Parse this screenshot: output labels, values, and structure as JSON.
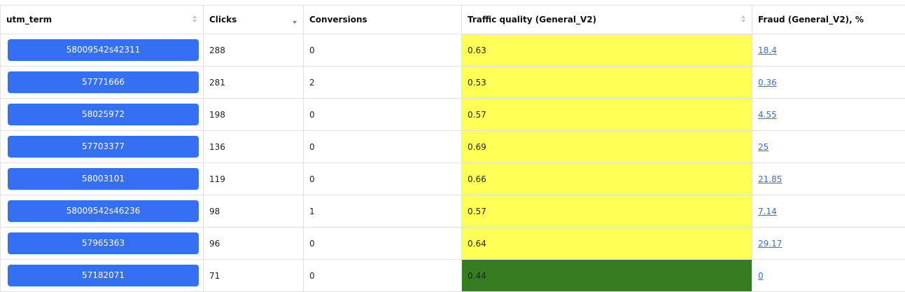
{
  "columns": {
    "utm_term": "utm_term",
    "clicks": "Clicks",
    "conversions": "Conversions",
    "quality": "Traffic quality (General_V2)",
    "fraud": "Fraud (General_V2), %"
  },
  "sort": {
    "column": "clicks",
    "direction": "desc"
  },
  "colors": {
    "button": "#3570f4",
    "quality_yellow": "#ffff55",
    "quality_green": "#367d21",
    "link": "#3a6fd8"
  },
  "rows": [
    {
      "term": "58009542s42311",
      "clicks": "288",
      "conversions": "0",
      "quality": "0.63",
      "quality_level": "yellow",
      "fraud": "18.4"
    },
    {
      "term": "57771666",
      "clicks": "281",
      "conversions": "2",
      "quality": "0.53",
      "quality_level": "yellow",
      "fraud": "0.36"
    },
    {
      "term": "58025972",
      "clicks": "198",
      "conversions": "0",
      "quality": "0.57",
      "quality_level": "yellow",
      "fraud": "4.55"
    },
    {
      "term": "57703377",
      "clicks": "136",
      "conversions": "0",
      "quality": "0.69",
      "quality_level": "yellow",
      "fraud": "25"
    },
    {
      "term": "58003101",
      "clicks": "119",
      "conversions": "0",
      "quality": "0.66",
      "quality_level": "yellow",
      "fraud": "21.85"
    },
    {
      "term": "58009542s46236",
      "clicks": "98",
      "conversions": "1",
      "quality": "0.57",
      "quality_level": "yellow",
      "fraud": "7.14"
    },
    {
      "term": "57965363",
      "clicks": "96",
      "conversions": "0",
      "quality": "0.64",
      "quality_level": "yellow",
      "fraud": "29.17"
    },
    {
      "term": "57182071",
      "clicks": "71",
      "conversions": "0",
      "quality": "0.44",
      "quality_level": "green",
      "fraud": "0"
    }
  ]
}
